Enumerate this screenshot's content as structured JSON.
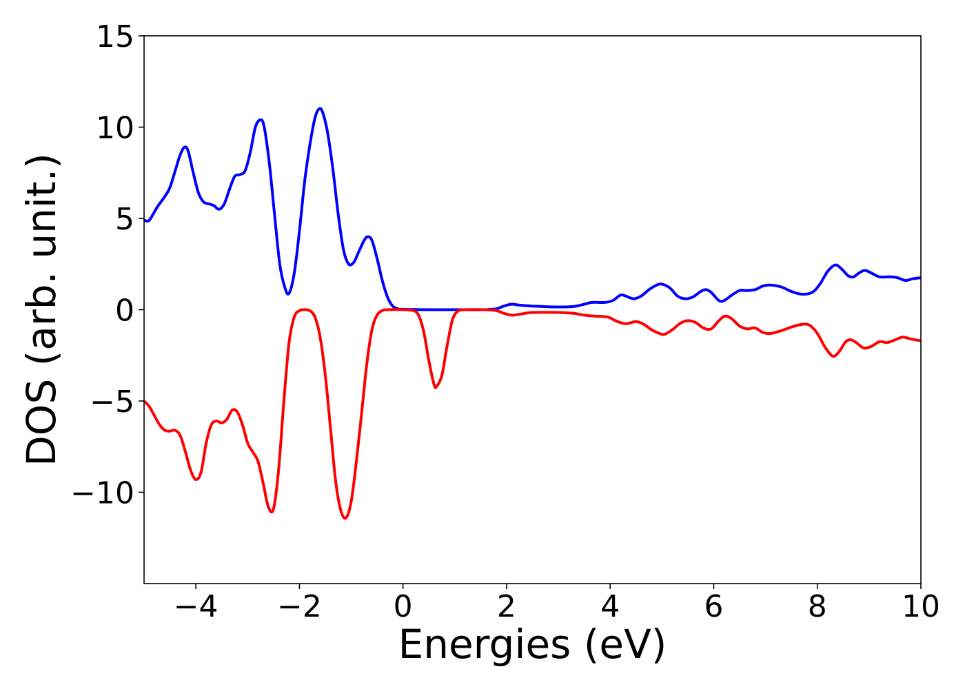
{
  "chart_data": {
    "type": "line",
    "xlabel": "Energies (eV)",
    "ylabel": "DOS (arb. unit.)",
    "xlim": [
      -5,
      10
    ],
    "ylim": [
      -15,
      15
    ],
    "x_ticks": [
      {
        "value": -4,
        "label": "−4"
      },
      {
        "value": -2,
        "label": "−2"
      },
      {
        "value": 0,
        "label": "0"
      },
      {
        "value": 2,
        "label": "2"
      },
      {
        "value": 4,
        "label": "4"
      },
      {
        "value": 6,
        "label": "6"
      },
      {
        "value": 8,
        "label": "8"
      },
      {
        "value": 10,
        "label": "10"
      }
    ],
    "y_ticks": [
      {
        "value": -10,
        "label": "−10"
      },
      {
        "value": -5,
        "label": "−5"
      },
      {
        "value": 0,
        "label": "0"
      },
      {
        "value": 5,
        "label": "5"
      },
      {
        "value": 10,
        "label": "10"
      },
      {
        "value": 15,
        "label": "15"
      }
    ],
    "grid": false,
    "series": [
      {
        "color": "#0000ff",
        "points": [
          [
            -5.0,
            4.9
          ],
          [
            -4.9,
            4.9
          ],
          [
            -4.75,
            5.6
          ],
          [
            -4.6,
            6.2
          ],
          [
            -4.5,
            6.7
          ],
          [
            -4.4,
            7.6
          ],
          [
            -4.3,
            8.5
          ],
          [
            -4.22,
            8.9
          ],
          [
            -4.15,
            8.7
          ],
          [
            -4.05,
            7.5
          ],
          [
            -3.95,
            6.4
          ],
          [
            -3.85,
            5.9
          ],
          [
            -3.75,
            5.8
          ],
          [
            -3.65,
            5.7
          ],
          [
            -3.55,
            5.5
          ],
          [
            -3.45,
            5.8
          ],
          [
            -3.35,
            6.6
          ],
          [
            -3.25,
            7.3
          ],
          [
            -3.15,
            7.4
          ],
          [
            -3.05,
            7.6
          ],
          [
            -2.95,
            8.6
          ],
          [
            -2.85,
            10.0
          ],
          [
            -2.75,
            10.4
          ],
          [
            -2.68,
            10.0
          ],
          [
            -2.58,
            8.0
          ],
          [
            -2.48,
            5.2
          ],
          [
            -2.38,
            2.5
          ],
          [
            -2.28,
            1.2
          ],
          [
            -2.2,
            0.9
          ],
          [
            -2.1,
            2.0
          ],
          [
            -2.0,
            4.3
          ],
          [
            -1.9,
            7.0
          ],
          [
            -1.8,
            9.0
          ],
          [
            -1.7,
            10.5
          ],
          [
            -1.62,
            11.0
          ],
          [
            -1.55,
            10.8
          ],
          [
            -1.45,
            9.6
          ],
          [
            -1.35,
            7.6
          ],
          [
            -1.25,
            5.2
          ],
          [
            -1.15,
            3.3
          ],
          [
            -1.05,
            2.5
          ],
          [
            -0.95,
            2.6
          ],
          [
            -0.85,
            3.2
          ],
          [
            -0.75,
            3.8
          ],
          [
            -0.68,
            4.0
          ],
          [
            -0.6,
            3.8
          ],
          [
            -0.5,
            2.8
          ],
          [
            -0.4,
            1.6
          ],
          [
            -0.3,
            0.7
          ],
          [
            -0.2,
            0.2
          ],
          [
            -0.1,
            0.05
          ],
          [
            0.0,
            0.02
          ],
          [
            0.5,
            0.0
          ],
          [
            1.0,
            0.0
          ],
          [
            1.5,
            0.0
          ],
          [
            1.8,
            0.05
          ],
          [
            1.95,
            0.2
          ],
          [
            2.1,
            0.3
          ],
          [
            2.25,
            0.25
          ],
          [
            2.5,
            0.2
          ],
          [
            3.0,
            0.15
          ],
          [
            3.3,
            0.18
          ],
          [
            3.5,
            0.3
          ],
          [
            3.65,
            0.4
          ],
          [
            3.9,
            0.4
          ],
          [
            4.05,
            0.5
          ],
          [
            4.2,
            0.8
          ],
          [
            4.3,
            0.75
          ],
          [
            4.45,
            0.6
          ],
          [
            4.6,
            0.75
          ],
          [
            4.75,
            1.1
          ],
          [
            4.9,
            1.35
          ],
          [
            5.0,
            1.4
          ],
          [
            5.15,
            1.2
          ],
          [
            5.3,
            0.75
          ],
          [
            5.45,
            0.6
          ],
          [
            5.6,
            0.7
          ],
          [
            5.75,
            1.0
          ],
          [
            5.85,
            1.1
          ],
          [
            5.95,
            0.95
          ],
          [
            6.1,
            0.5
          ],
          [
            6.2,
            0.5
          ],
          [
            6.35,
            0.8
          ],
          [
            6.5,
            1.05
          ],
          [
            6.65,
            1.05
          ],
          [
            6.8,
            1.1
          ],
          [
            6.95,
            1.3
          ],
          [
            7.1,
            1.35
          ],
          [
            7.3,
            1.25
          ],
          [
            7.5,
            1.0
          ],
          [
            7.7,
            0.85
          ],
          [
            7.9,
            0.95
          ],
          [
            8.05,
            1.4
          ],
          [
            8.2,
            2.1
          ],
          [
            8.35,
            2.45
          ],
          [
            8.48,
            2.2
          ],
          [
            8.6,
            1.85
          ],
          [
            8.7,
            1.8
          ],
          [
            8.8,
            2.0
          ],
          [
            8.92,
            2.15
          ],
          [
            9.05,
            2.0
          ],
          [
            9.2,
            1.8
          ],
          [
            9.4,
            1.8
          ],
          [
            9.55,
            1.75
          ],
          [
            9.7,
            1.6
          ],
          [
            9.85,
            1.7
          ],
          [
            10.0,
            1.75
          ]
        ]
      },
      {
        "color": "#ff0000",
        "points": [
          [
            -5.0,
            -5.0
          ],
          [
            -4.9,
            -5.3
          ],
          [
            -4.8,
            -5.8
          ],
          [
            -4.7,
            -6.3
          ],
          [
            -4.6,
            -6.6
          ],
          [
            -4.5,
            -6.65
          ],
          [
            -4.4,
            -6.6
          ],
          [
            -4.3,
            -6.9
          ],
          [
            -4.2,
            -7.8
          ],
          [
            -4.1,
            -8.8
          ],
          [
            -4.0,
            -9.3
          ],
          [
            -3.9,
            -8.9
          ],
          [
            -3.8,
            -7.3
          ],
          [
            -3.7,
            -6.3
          ],
          [
            -3.6,
            -6.1
          ],
          [
            -3.5,
            -6.2
          ],
          [
            -3.4,
            -6.0
          ],
          [
            -3.3,
            -5.5
          ],
          [
            -3.2,
            -5.6
          ],
          [
            -3.1,
            -6.3
          ],
          [
            -3.0,
            -7.3
          ],
          [
            -2.9,
            -7.8
          ],
          [
            -2.8,
            -8.3
          ],
          [
            -2.7,
            -9.5
          ],
          [
            -2.6,
            -10.8
          ],
          [
            -2.5,
            -10.9
          ],
          [
            -2.4,
            -8.7
          ],
          [
            -2.3,
            -5.0
          ],
          [
            -2.2,
            -1.8
          ],
          [
            -2.1,
            -0.4
          ],
          [
            -2.0,
            -0.05
          ],
          [
            -1.9,
            0.0
          ],
          [
            -1.8,
            -0.05
          ],
          [
            -1.7,
            -0.4
          ],
          [
            -1.6,
            -1.5
          ],
          [
            -1.5,
            -3.6
          ],
          [
            -1.4,
            -6.5
          ],
          [
            -1.3,
            -9.4
          ],
          [
            -1.2,
            -11.0
          ],
          [
            -1.1,
            -11.4
          ],
          [
            -1.0,
            -10.5
          ],
          [
            -0.9,
            -8.3
          ],
          [
            -0.8,
            -5.7
          ],
          [
            -0.7,
            -3.0
          ],
          [
            -0.6,
            -1.1
          ],
          [
            -0.5,
            -0.3
          ],
          [
            -0.4,
            -0.05
          ],
          [
            -0.3,
            0.0
          ],
          [
            0.0,
            0.0
          ],
          [
            0.2,
            -0.05
          ],
          [
            0.3,
            -0.3
          ],
          [
            0.4,
            -1.2
          ],
          [
            0.5,
            -2.8
          ],
          [
            0.6,
            -4.1
          ],
          [
            0.65,
            -4.2
          ],
          [
            0.75,
            -3.6
          ],
          [
            0.85,
            -2.0
          ],
          [
            0.95,
            -0.6
          ],
          [
            1.05,
            -0.1
          ],
          [
            1.2,
            0.0
          ],
          [
            1.6,
            0.0
          ],
          [
            1.8,
            -0.05
          ],
          [
            1.95,
            -0.2
          ],
          [
            2.1,
            -0.3
          ],
          [
            2.25,
            -0.25
          ],
          [
            2.5,
            -0.15
          ],
          [
            3.0,
            -0.15
          ],
          [
            3.3,
            -0.2
          ],
          [
            3.5,
            -0.3
          ],
          [
            3.7,
            -0.35
          ],
          [
            3.95,
            -0.4
          ],
          [
            4.1,
            -0.6
          ],
          [
            4.25,
            -0.75
          ],
          [
            4.35,
            -0.75
          ],
          [
            4.5,
            -0.65
          ],
          [
            4.65,
            -0.8
          ],
          [
            4.8,
            -1.1
          ],
          [
            4.95,
            -1.3
          ],
          [
            5.05,
            -1.35
          ],
          [
            5.2,
            -1.1
          ],
          [
            5.35,
            -0.75
          ],
          [
            5.5,
            -0.6
          ],
          [
            5.65,
            -0.7
          ],
          [
            5.8,
            -1.0
          ],
          [
            5.95,
            -1.05
          ],
          [
            6.1,
            -0.6
          ],
          [
            6.22,
            -0.35
          ],
          [
            6.35,
            -0.5
          ],
          [
            6.5,
            -0.9
          ],
          [
            6.65,
            -1.05
          ],
          [
            6.8,
            -1.0
          ],
          [
            6.95,
            -1.25
          ],
          [
            7.1,
            -1.3
          ],
          [
            7.3,
            -1.15
          ],
          [
            7.5,
            -0.95
          ],
          [
            7.7,
            -0.8
          ],
          [
            7.85,
            -0.85
          ],
          [
            8.0,
            -1.3
          ],
          [
            8.15,
            -2.05
          ],
          [
            8.3,
            -2.55
          ],
          [
            8.42,
            -2.3
          ],
          [
            8.55,
            -1.75
          ],
          [
            8.65,
            -1.65
          ],
          [
            8.75,
            -1.8
          ],
          [
            8.9,
            -2.1
          ],
          [
            9.05,
            -2.0
          ],
          [
            9.2,
            -1.75
          ],
          [
            9.35,
            -1.8
          ],
          [
            9.5,
            -1.65
          ],
          [
            9.65,
            -1.5
          ],
          [
            9.8,
            -1.6
          ],
          [
            10.0,
            -1.7
          ]
        ]
      }
    ]
  }
}
